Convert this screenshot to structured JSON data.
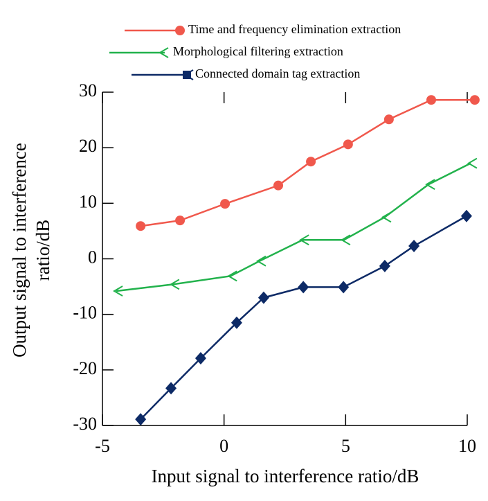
{
  "chart_data": {
    "type": "line",
    "xlabel": "Input signal to interference ratio/dB",
    "ylabel": "Output signal to interference ratio/dB",
    "xlim": [
      -5,
      10
    ],
    "xticks": [
      -5,
      0,
      5,
      10
    ],
    "ylim": [
      -30,
      30
    ],
    "yticks": [
      -30,
      -20,
      -10,
      0,
      10,
      20,
      30
    ],
    "legend": "top",
    "series": [
      {
        "name": "Time and frequency elimination extraction",
        "color": "#f0584c",
        "marker": "circle",
        "x": [
          -3.43,
          -1.81,
          0.04,
          2.23,
          3.57,
          5.1,
          6.78,
          8.52,
          10.31
        ],
        "values": [
          5.9,
          6.9,
          9.9,
          13.2,
          17.5,
          20.6,
          25.1,
          28.6,
          28.6
        ]
      },
      {
        "name": "Morphological filtering extraction",
        "color": "#22b24c",
        "marker": "arrow",
        "x": [
          -4.43,
          -2.1,
          0.27,
          1.46,
          3.23,
          4.93,
          6.61,
          8.41,
          10.14
        ],
        "values": [
          -5.8,
          -4.6,
          -3.1,
          -0.4,
          3.4,
          3.4,
          7.5,
          13.4,
          17.2
        ]
      },
      {
        "name": "Connected domain tag extraction",
        "color": "#0d2a66",
        "marker": "diamond",
        "x": [
          -3.43,
          -2.18,
          -0.96,
          0.52,
          1.63,
          3.26,
          4.91,
          6.61,
          7.81,
          9.97
        ],
        "values": [
          -28.9,
          -23.3,
          -17.9,
          -11.5,
          -7.0,
          -5.1,
          -5.1,
          -1.3,
          2.3,
          7.7
        ]
      }
    ]
  }
}
